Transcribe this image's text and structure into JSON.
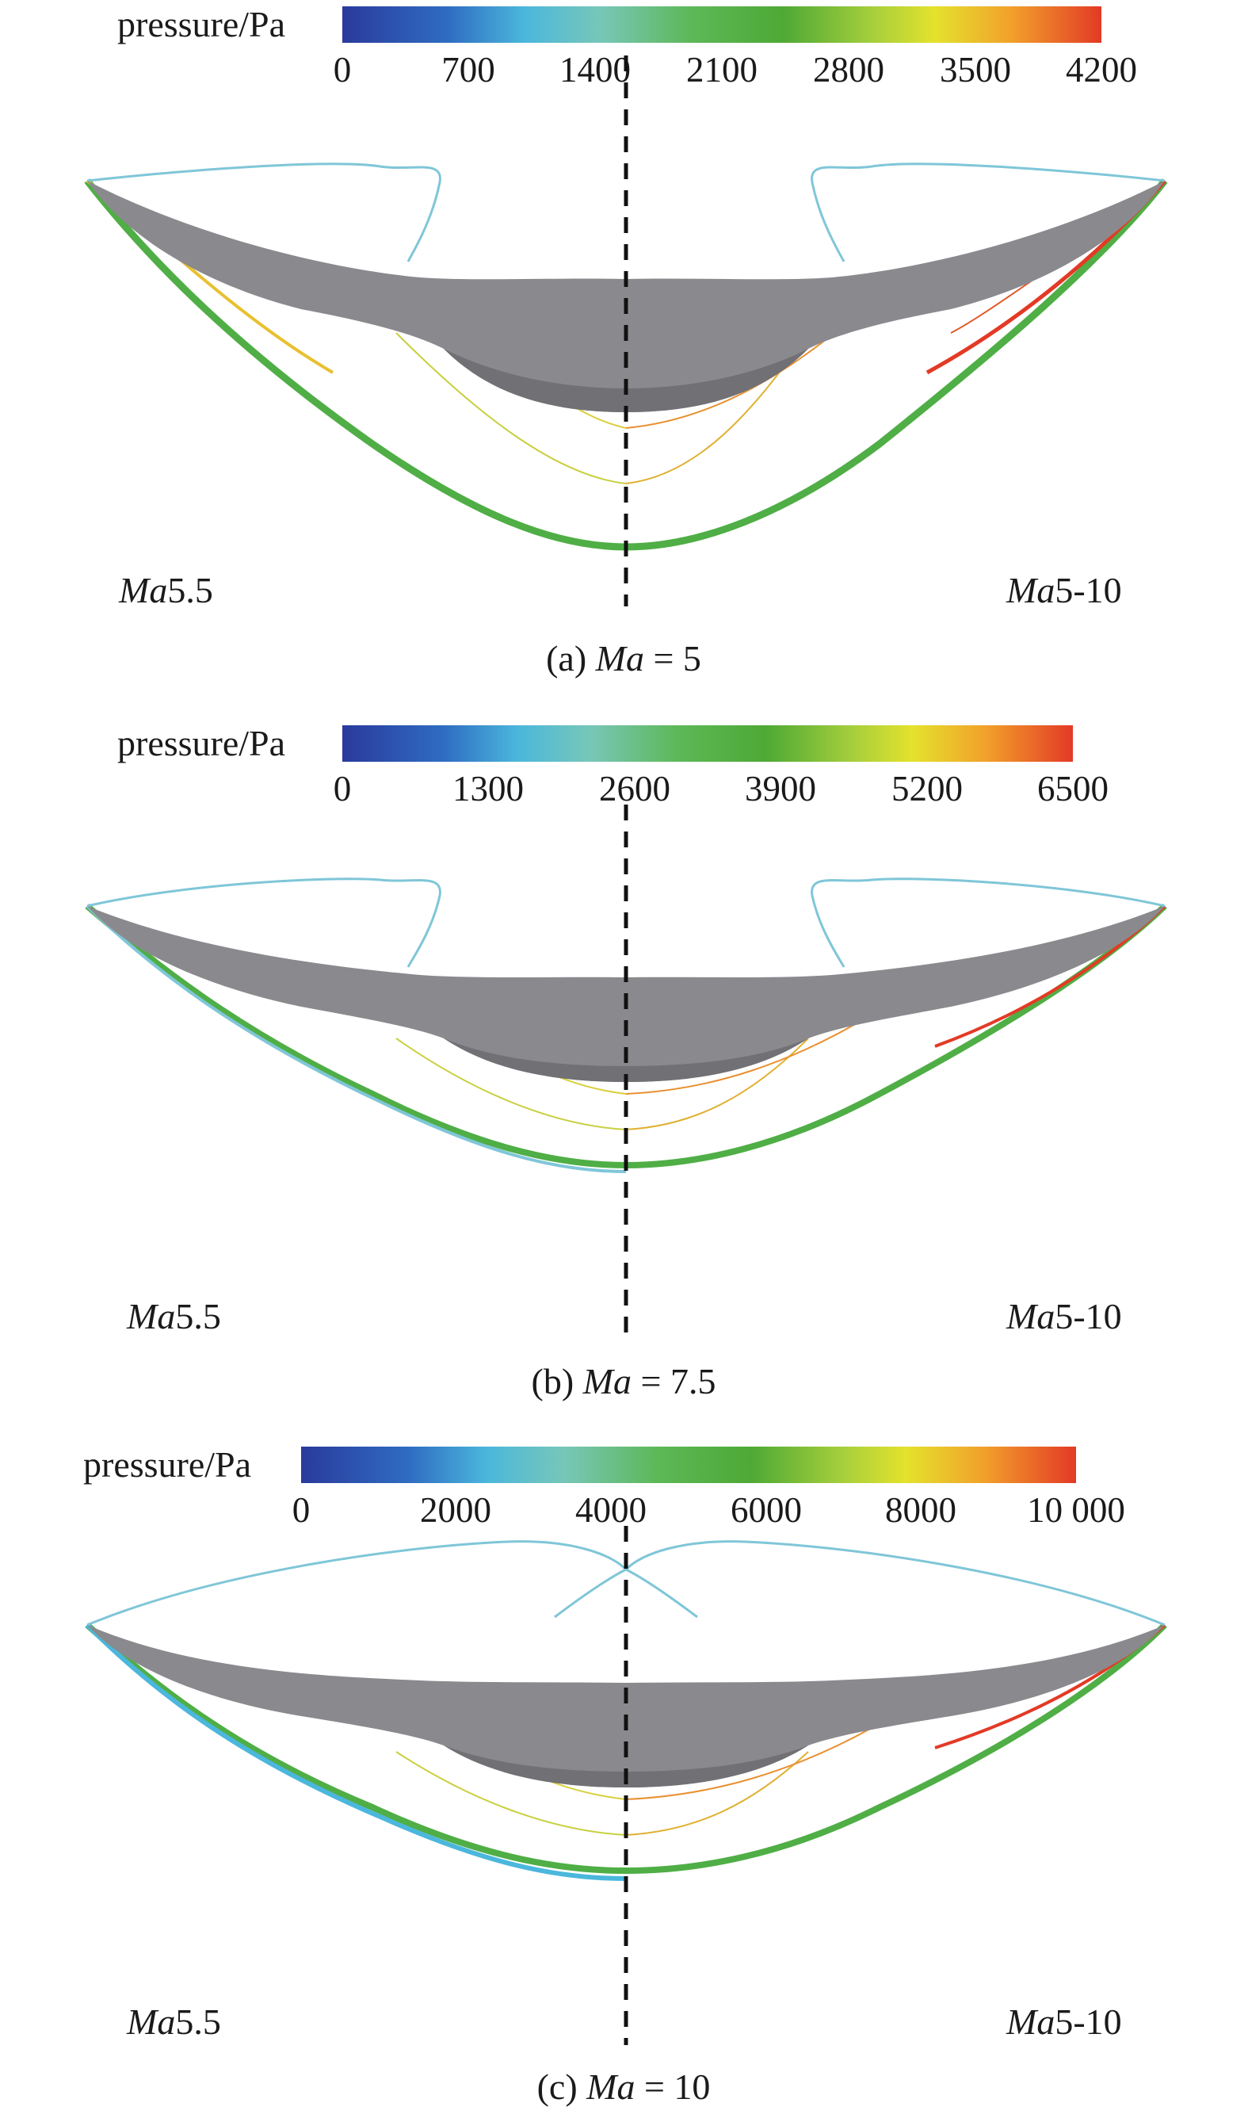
{
  "panels": [
    {
      "id": "a",
      "colorbar_label": "pressure/Pa",
      "ticks": [
        "0",
        "700",
        "1400",
        "2100",
        "2800",
        "3500",
        "4200"
      ],
      "left_label": {
        "ma": "Ma",
        "rest": "5.5"
      },
      "right_label": {
        "ma": "Ma",
        "rest": "5-10"
      },
      "caption": {
        "prefix": "(a) ",
        "ma": "Ma",
        "suffix": " = 5"
      }
    },
    {
      "id": "b",
      "colorbar_label": "pressure/Pa",
      "ticks": [
        "0",
        "1300",
        "2600",
        "3900",
        "5200",
        "6500"
      ],
      "left_label": {
        "ma": "Ma",
        "rest": "5.5"
      },
      "right_label": {
        "ma": "Ma",
        "rest": "5-10"
      },
      "caption": {
        "prefix": "(b) ",
        "ma": "Ma",
        "suffix": " = 7.5"
      }
    },
    {
      "id": "c",
      "colorbar_label": "pressure/Pa",
      "ticks": [
        "0",
        "2000",
        "4000",
        "6000",
        "8000",
        "10 000"
      ],
      "left_label": {
        "ma": "Ma",
        "rest": "5.5"
      },
      "right_label": {
        "ma": "Ma",
        "rest": "5-10"
      },
      "caption": {
        "prefix": "(c) ",
        "ma": "Ma",
        "suffix": " = 10"
      }
    }
  ],
  "colors": {
    "body_gray": "#8a8a8e",
    "body_dark": "#707075",
    "shock_green": "#4fae45",
    "outline_cyan": "#7fc6d8",
    "dash": "#111111"
  }
}
